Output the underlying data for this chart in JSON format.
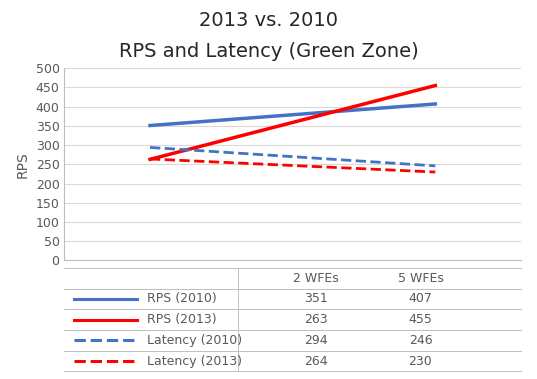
{
  "title_line1": "2013 vs. 2010",
  "title_line2": "RPS and Latency (Green Zone)",
  "x_labels": [
    "2 WFEs",
    "5 WFEs"
  ],
  "x_positions": [
    0,
    1
  ],
  "series": [
    {
      "label": "RPS (2010)",
      "values": [
        351,
        407
      ],
      "color": "#4472C4",
      "linestyle": "solid",
      "linewidth": 2.5
    },
    {
      "label": "RPS (2013)",
      "values": [
        263,
        455
      ],
      "color": "#FF0000",
      "linestyle": "solid",
      "linewidth": 2.5
    },
    {
      "label": "Latency (2010)",
      "values": [
        294,
        246
      ],
      "color": "#4472C4",
      "linestyle": "dashed",
      "linewidth": 2.0
    },
    {
      "label": "Latency (2013)",
      "values": [
        264,
        230
      ],
      "color": "#FF0000",
      "linestyle": "dashed",
      "linewidth": 2.0
    }
  ],
  "ylabel": "RPS",
  "ylim": [
    0,
    500
  ],
  "yticks": [
    0,
    50,
    100,
    150,
    200,
    250,
    300,
    350,
    400,
    450,
    500
  ],
  "table_data": [
    [
      "RPS (2010)",
      "351",
      "407"
    ],
    [
      "RPS (2013)",
      "263",
      "455"
    ],
    [
      "Latency (2010)",
      "294",
      "246"
    ],
    [
      "Latency (2013)",
      "264",
      "230"
    ]
  ],
  "table_col_labels": [
    "",
    "2 WFEs",
    "5 WFEs"
  ],
  "row_colors": [
    "#4472C4",
    "#FF0000",
    "#4472C4",
    "#FF0000"
  ],
  "row_linestyles": [
    "solid",
    "solid",
    "dashed",
    "dashed"
  ],
  "background_color": "#FFFFFF",
  "grid_color": "#D9D9D9",
  "title_fontsize": 14,
  "axis_label_fontsize": 10,
  "tick_fontsize": 9,
  "table_fontsize": 9
}
